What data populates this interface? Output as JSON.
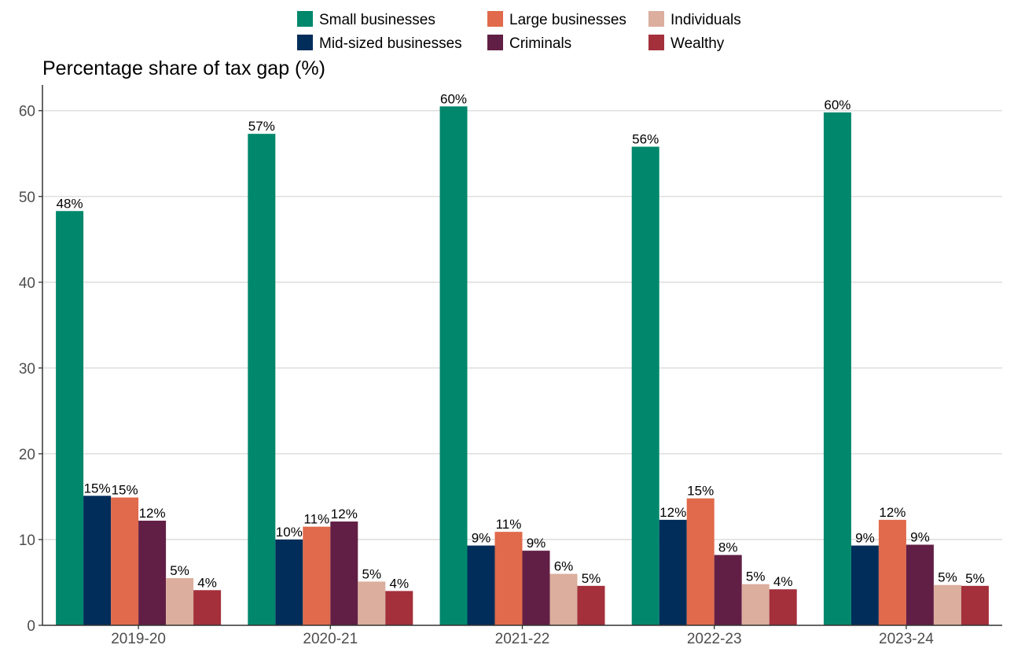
{
  "chart_data": {
    "type": "bar",
    "title": "Percentage share of tax gap (%)",
    "xlabel": "",
    "ylabel": "",
    "categories": [
      "2019-20",
      "2020-21",
      "2021-22",
      "2022-23",
      "2023-24"
    ],
    "ylim": [
      0,
      63
    ],
    "yticks": [
      "0",
      "10",
      "20",
      "30",
      "40",
      "50",
      "60"
    ],
    "grid": "horizontal",
    "legend_position": "top",
    "series": [
      {
        "name": "Small businesses",
        "color": "#00876c",
        "values": [
          48.3,
          57.3,
          60.5,
          55.8,
          59.8
        ],
        "labels": [
          "48%",
          "57%",
          "60%",
          "56%",
          "60%"
        ]
      },
      {
        "name": "Mid-sized businesses",
        "color": "#002d5a",
        "values": [
          15.1,
          10.0,
          9.3,
          12.3,
          9.3
        ],
        "labels": [
          "15%",
          "10%",
          "9%",
          "12%",
          "9%"
        ]
      },
      {
        "name": "Large businesses",
        "color": "#e06a4b",
        "values": [
          14.9,
          11.5,
          10.9,
          14.8,
          12.3
        ],
        "labels": [
          "15%",
          "11%",
          "11%",
          "15%",
          "12%"
        ]
      },
      {
        "name": "Criminals",
        "color": "#621f45",
        "values": [
          12.2,
          12.1,
          8.7,
          8.2,
          9.4
        ],
        "labels": [
          "12%",
          "12%",
          "9%",
          "8%",
          "9%"
        ]
      },
      {
        "name": "Individuals",
        "color": "#dbae9d",
        "values": [
          5.5,
          5.1,
          6.0,
          4.8,
          4.7
        ],
        "labels": [
          "5%",
          "5%",
          "6%",
          "5%",
          "5%"
        ]
      },
      {
        "name": "Wealthy",
        "color": "#a3303b",
        "values": [
          4.1,
          4.0,
          4.6,
          4.2,
          4.6
        ],
        "labels": [
          "4%",
          "4%",
          "5%",
          "4%",
          "5%"
        ]
      }
    ]
  }
}
